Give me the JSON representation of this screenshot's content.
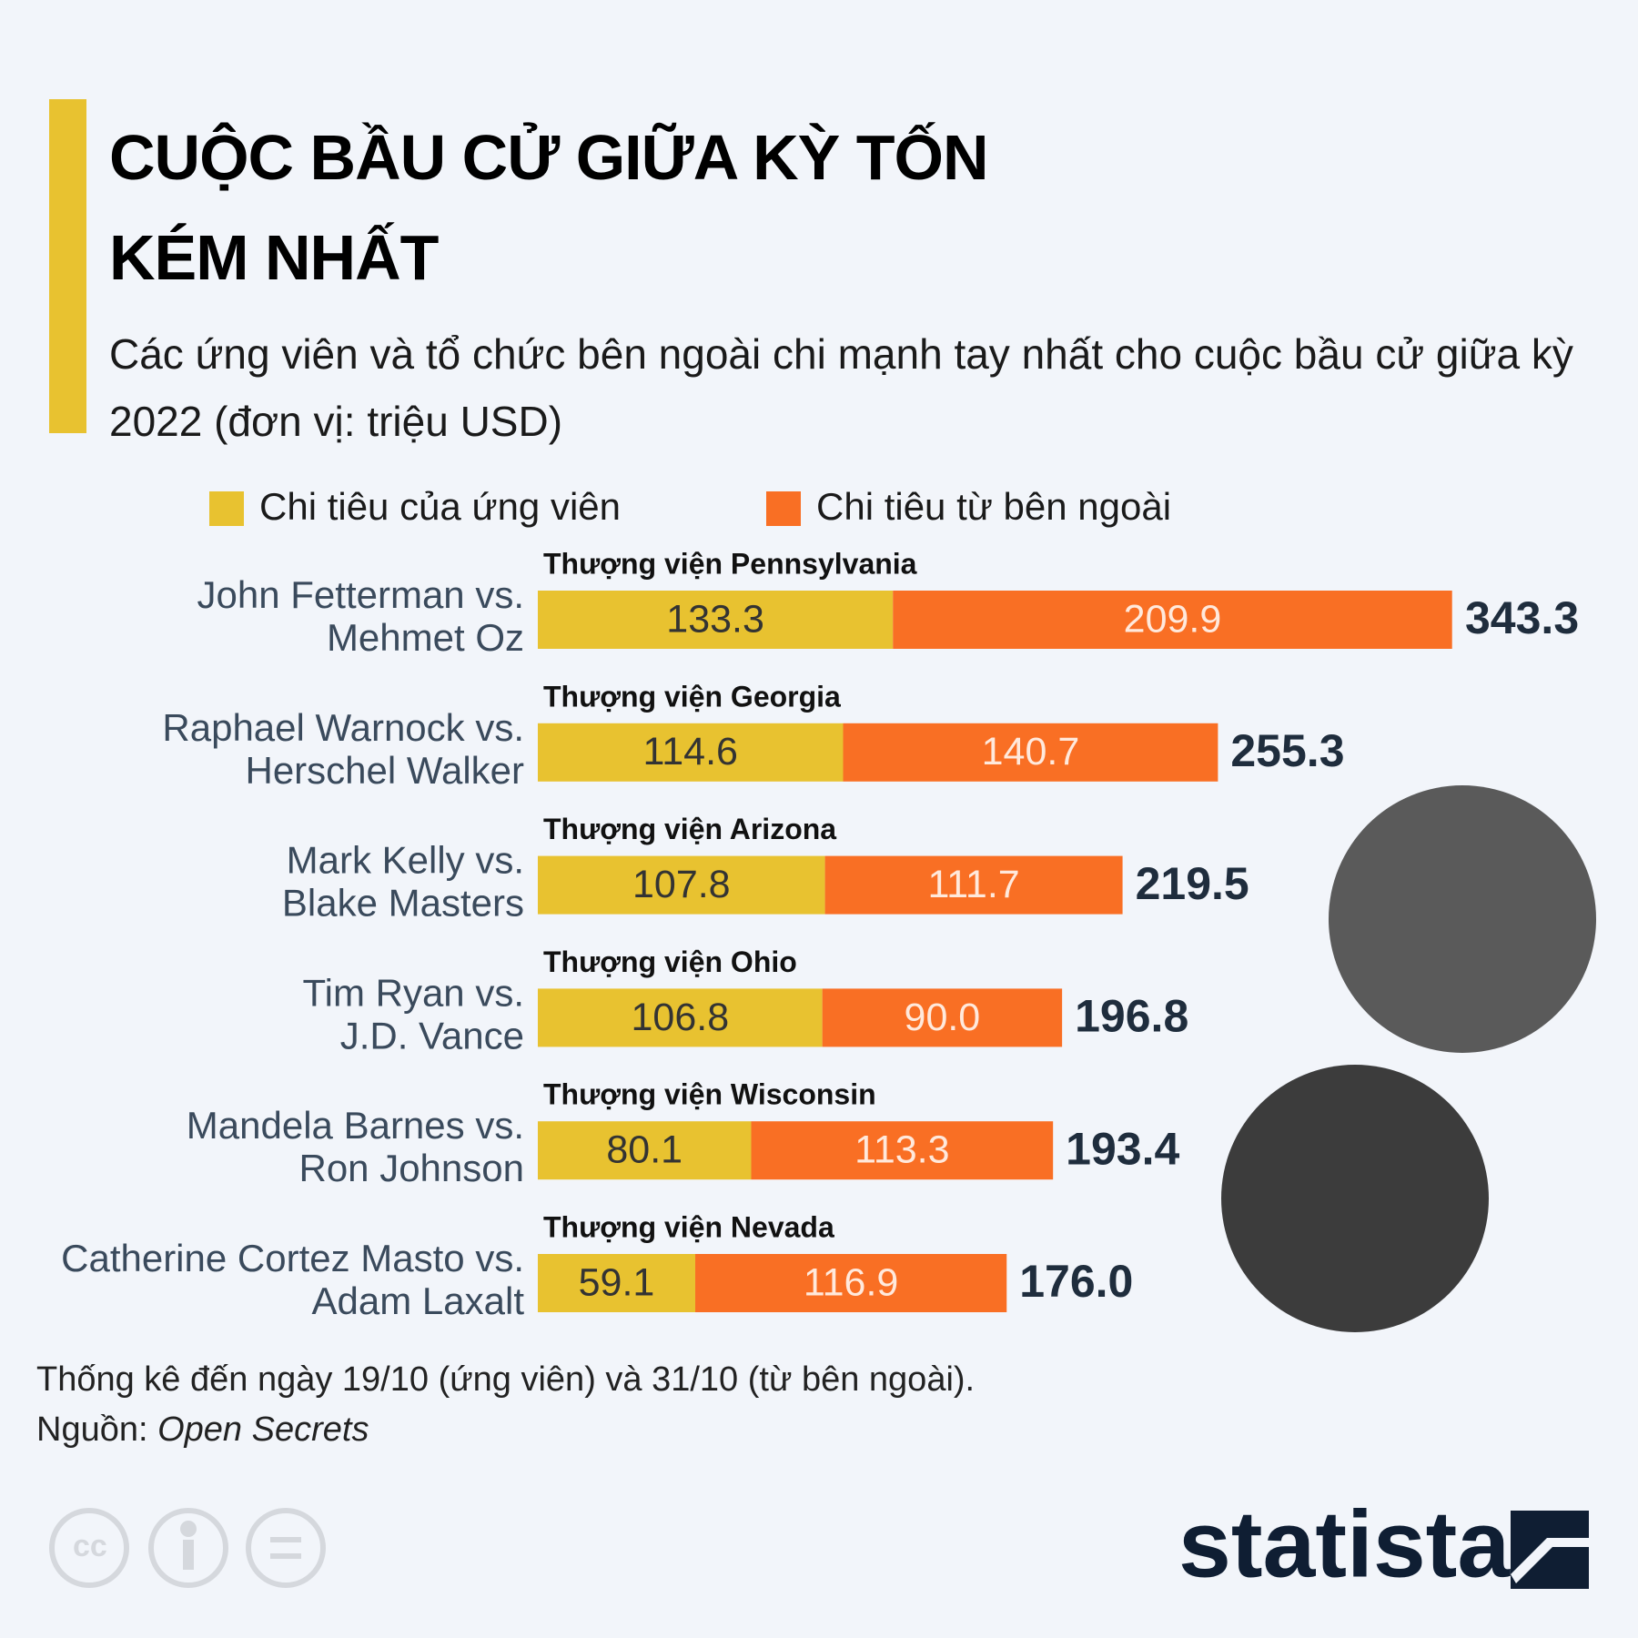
{
  "chart_data": {
    "type": "stacked-bar-horizontal",
    "title": "CUỘC BẦU CỬ GIỮA KỲ TỐN KÉM NHẤT",
    "subtitle": "Các ứng viên và tổ chức bên ngoài chi mạnh tay nhất cho cuộc bầu cử giữa kỳ 2022 (đơn vị: triệu USD)",
    "categories": [
      "John Fetterman vs. Mehmet Oz",
      "Raphael Warnock vs. Herschel Walker",
      "Mark Kelly vs. Blake Masters",
      "Tim Ryan vs. J.D. Vance",
      "Mandela Barnes vs. Ron Johnson",
      "Catherine Cortez Masto vs. Adam Laxalt"
    ],
    "group_titles": [
      "Thượng viện Pennsylvania",
      "Thượng viện Georgia",
      "Thượng viện Arizona",
      "Thượng viện Ohio",
      "Thượng viện Wisconsin",
      "Thượng viện Nevada"
    ],
    "series": [
      {
        "name": "Chi tiêu của ứng viên",
        "color": "#e8c230",
        "values": [
          133.3,
          114.6,
          107.8,
          106.8,
          80.1,
          59.1
        ],
        "value_labels": [
          "133.3",
          "114.6",
          "107.8",
          "106.8",
          "80.1",
          "59.1"
        ]
      },
      {
        "name": "Chi tiêu từ bên ngoài",
        "color": "#f96f24",
        "values": [
          209.9,
          140.7,
          111.7,
          90,
          113.3,
          116.9
        ],
        "value_labels": [
          "209.9",
          "140.7",
          "111.7",
          "90.0",
          "113.3",
          "116.9"
        ]
      }
    ],
    "totals": [
      343.3,
      255.3,
      219.5,
      196.8,
      193.4,
      176
    ],
    "total_labels": [
      "343.3",
      "255.3",
      "219.5",
      "196.8",
      "193.4",
      "176.0"
    ],
    "note": "Thống kê đến ngày 19/10 (ứng viên) và 31/10 (từ bên ngoài).",
    "source_label": "Nguồn:",
    "source": "Open Secrets",
    "brand": "statista"
  }
}
